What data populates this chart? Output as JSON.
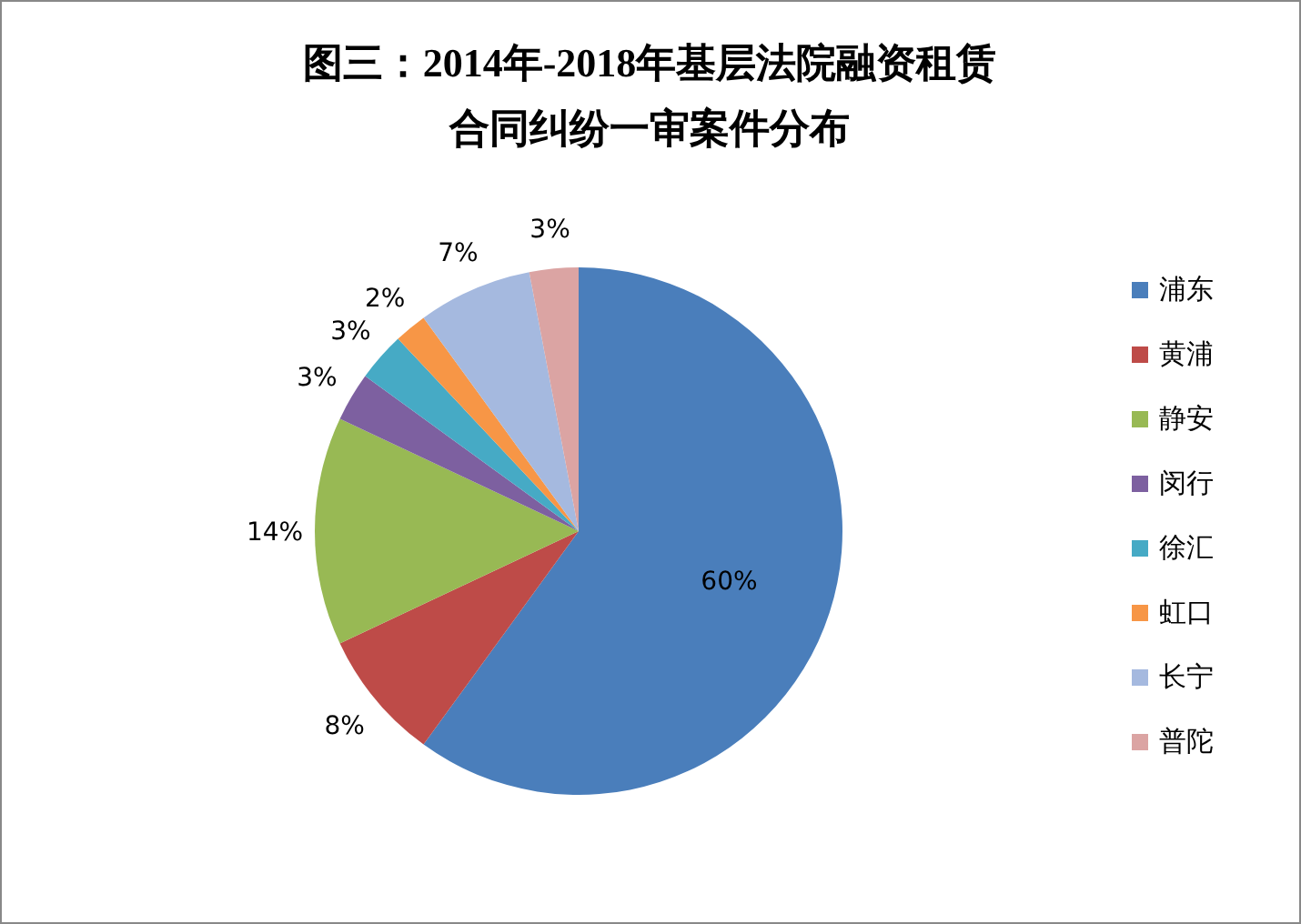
{
  "chart_data": {
    "type": "pie",
    "title": "图三：2014年-2018年基层法院融资租赁合同纠纷一审案件分布",
    "categories": [
      "浦东",
      "黄浦",
      "静安",
      "闵行",
      "徐汇",
      "虹口",
      "长宁",
      "普陀"
    ],
    "values": [
      60,
      8,
      14,
      3,
      3,
      2,
      7,
      3
    ],
    "value_labels": [
      "60%",
      "8%",
      "14%",
      "3%",
      "3%",
      "2%",
      "7%",
      "3%"
    ],
    "colors": [
      "#4a7ebb",
      "#be4b48",
      "#98b954",
      "#7d60a0",
      "#46aac5",
      "#f79646",
      "#a5b9df",
      "#dba4a3"
    ],
    "legend": "right"
  }
}
